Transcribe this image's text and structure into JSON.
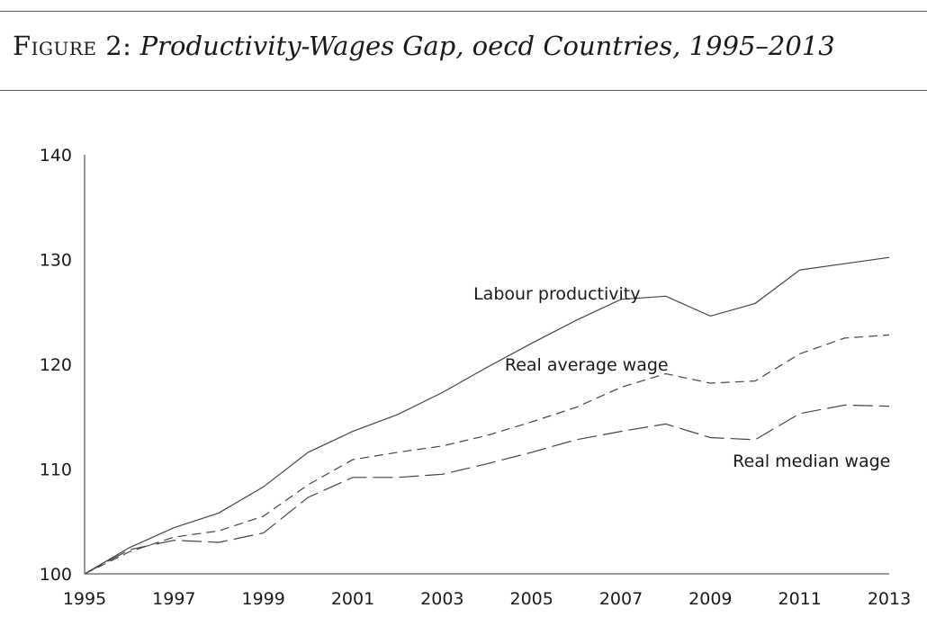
{
  "figure": {
    "label": "Figure 2:",
    "title": "Productivity-Wages Gap, oecd Countries, 1995–2013"
  },
  "chart_data": {
    "type": "line",
    "x": [
      1995,
      1996,
      1997,
      1998,
      1999,
      2000,
      2001,
      2002,
      2003,
      2004,
      2005,
      2006,
      2007,
      2008,
      2009,
      2010,
      2011,
      2012,
      2013
    ],
    "xticks": [
      "1995",
      "1997",
      "1999",
      "2001",
      "2003",
      "2005",
      "2007",
      "2009",
      "2011",
      "2013"
    ],
    "yticks": [
      "100",
      "110",
      "120",
      "130",
      "140"
    ],
    "xlim": [
      1995,
      2013
    ],
    "ylim": [
      100,
      140
    ],
    "grid": false,
    "legend": "inline labels",
    "series": [
      {
        "name": "Labour productivity",
        "style": "solid",
        "values": [
          100,
          102.5,
          104.4,
          105.8,
          108.3,
          111.6,
          113.6,
          115.2,
          117.3,
          119.7,
          122.0,
          124.2,
          126.2,
          126.5,
          124.6,
          125.8,
          129.0,
          129.6,
          130.2
        ]
      },
      {
        "name": "Real average wage",
        "style": "dashed",
        "values": [
          100,
          102.1,
          103.5,
          104.1,
          105.5,
          108.5,
          110.9,
          111.6,
          112.2,
          113.2,
          114.5,
          115.9,
          117.8,
          119.1,
          118.2,
          118.4,
          121.0,
          122.5,
          122.8
        ]
      },
      {
        "name": "Real median wage",
        "style": "long-dash",
        "values": [
          100,
          102.3,
          103.2,
          103.0,
          103.9,
          107.3,
          109.2,
          109.2,
          109.5,
          110.5,
          111.6,
          112.8,
          113.6,
          114.3,
          113.0,
          112.8,
          115.3,
          116.1,
          116.0
        ]
      }
    ]
  }
}
